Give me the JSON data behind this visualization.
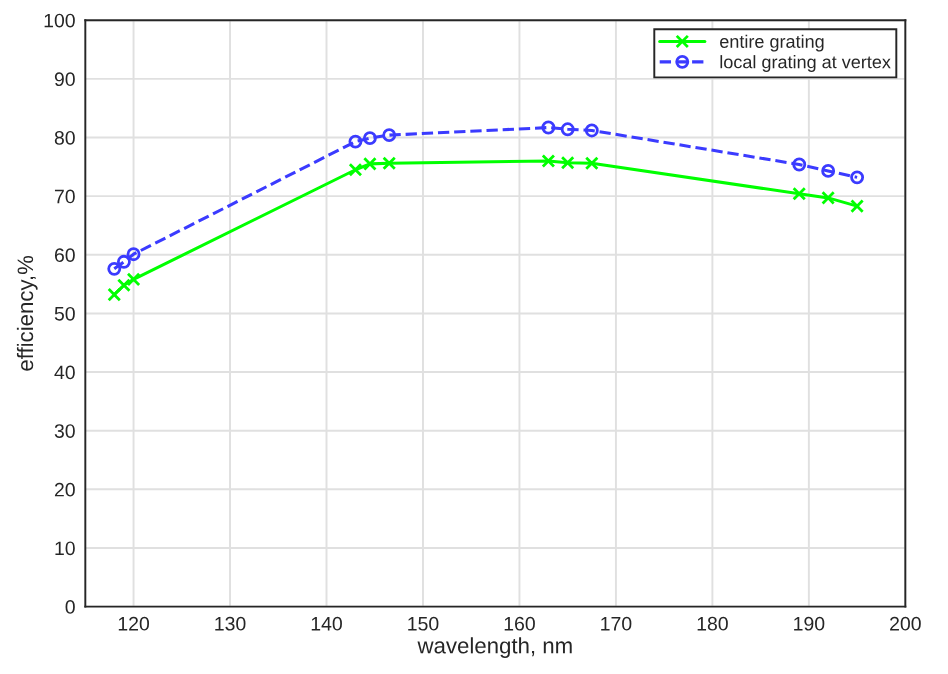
{
  "chart_data": {
    "type": "line",
    "xlabel": "wavelength, nm",
    "ylabel": "efficiency,%",
    "xlim": [
      115,
      200
    ],
    "xticks": [
      120,
      130,
      140,
      150,
      160,
      170,
      180,
      190,
      200
    ],
    "ylim": [
      0,
      100
    ],
    "yticks": [
      0,
      10,
      20,
      30,
      40,
      50,
      60,
      70,
      80,
      90,
      100
    ],
    "grid": true,
    "legend": "top right",
    "series": [
      {
        "name": "entire grating",
        "color": "#00ff00",
        "marker": "cross",
        "line_style": "solid",
        "x": [
          118,
          119,
          120,
          143,
          144.5,
          146.5,
          163,
          165,
          167.5,
          189,
          192,
          195
        ],
        "values": [
          53.2,
          54.8,
          55.8,
          74.5,
          75.5,
          75.6,
          76,
          75.7,
          75.6,
          70.4,
          69.7,
          68.3
        ]
      },
      {
        "name": "local grating at vertex",
        "color": "#3b3bff",
        "marker": "circle",
        "line_style": "dashed",
        "x": [
          118,
          119,
          120,
          143,
          144.5,
          146.5,
          163,
          165,
          167.5,
          189,
          192,
          195
        ],
        "values": [
          57.6,
          58.8,
          60.1,
          79.3,
          79.9,
          80.4,
          81.7,
          81.4,
          81.2,
          75.4,
          74.3,
          73.2
        ]
      }
    ]
  }
}
